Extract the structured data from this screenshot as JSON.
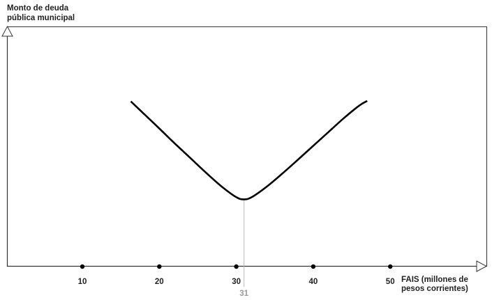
{
  "chart_data": {
    "type": "line",
    "ylabel_lines": [
      "Monto de deuda",
      "pública municipal"
    ],
    "xlabel_lines": [
      "FAIS (millones de",
      "pesos corrientes)"
    ],
    "xlim": [
      0,
      62
    ],
    "ylim": [
      0,
      100
    ],
    "x_ticks": [
      10,
      20,
      30,
      40,
      50
    ],
    "x_tick_labels": [
      "10",
      "20",
      "30",
      "40",
      "50"
    ],
    "grid": false,
    "minimum_marker": {
      "x": 31,
      "label": "31",
      "color": "#bbbbbb"
    },
    "series": [
      {
        "color": "#000000",
        "points": [
          [
            16.3,
            68.8
          ],
          [
            18,
            63.6
          ],
          [
            20,
            57.5
          ],
          [
            22,
            51.3
          ],
          [
            24,
            45.3
          ],
          [
            26,
            39.3
          ],
          [
            28,
            33.6
          ],
          [
            30,
            28.9
          ],
          [
            31,
            28
          ],
          [
            32,
            28.9
          ],
          [
            34,
            33.4
          ],
          [
            36,
            38.8
          ],
          [
            38,
            44.5
          ],
          [
            40,
            50.3
          ],
          [
            42,
            56.1
          ],
          [
            44,
            61.9
          ],
          [
            46,
            67.1
          ],
          [
            47,
            69
          ]
        ]
      }
    ]
  }
}
